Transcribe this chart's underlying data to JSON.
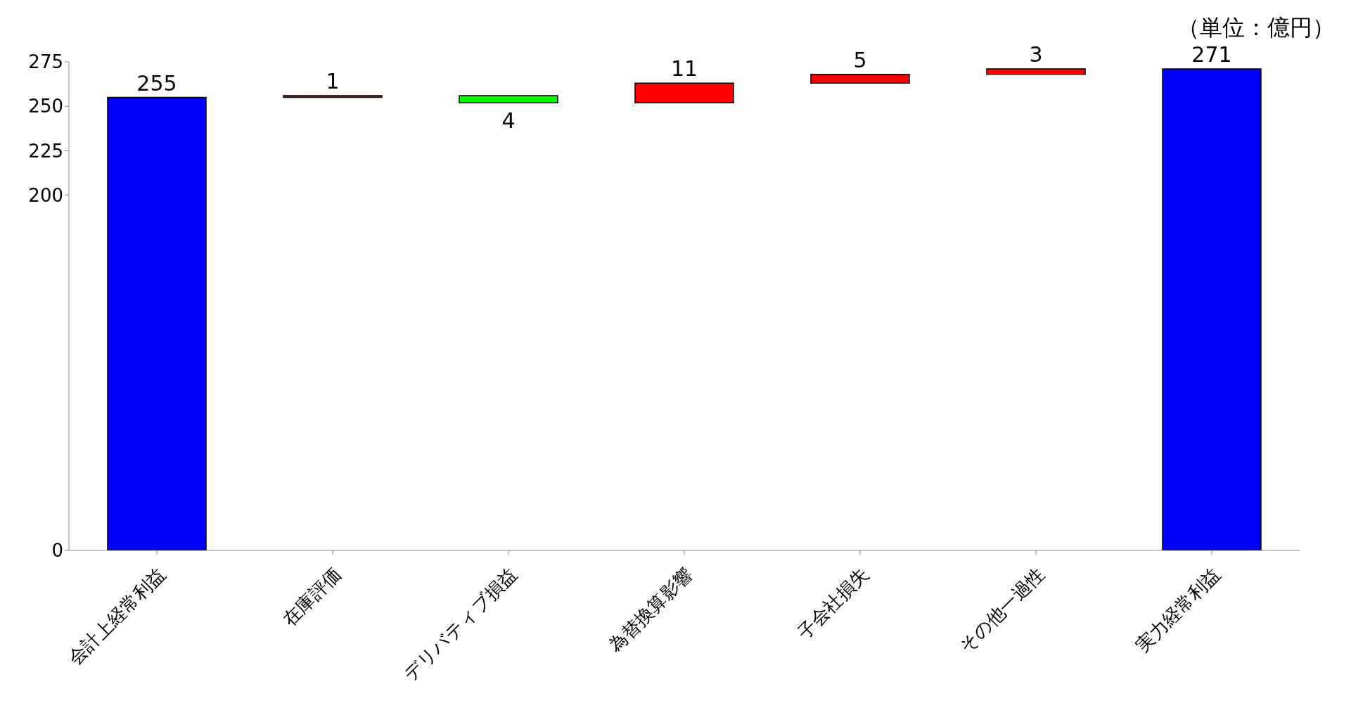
{
  "chart_data": {
    "type": "bar",
    "categories": [
      "会計上経常利益",
      "在庫評価",
      "デリバティブ損益",
      "為替換算影響",
      "子会社損失",
      "その他一過性",
      "実力経常利益"
    ],
    "values": [
      255,
      1,
      -4,
      11,
      5,
      3,
      271
    ],
    "base": [
      0,
      255,
      256,
      252,
      263,
      268,
      0
    ],
    "colors": [
      "#0000ff",
      "#ff0000",
      "#00ff00",
      "#ff0000",
      "#ff0000",
      "#ff0000",
      "#0000ff"
    ],
    "value_labels": [
      "255",
      "1",
      "4",
      "11",
      "5",
      "3",
      "271"
    ],
    "ylim": [
      0,
      275
    ],
    "yticks": [
      0,
      200,
      225,
      250,
      275
    ],
    "annotations": [
      "（単位：億円）"
    ]
  }
}
